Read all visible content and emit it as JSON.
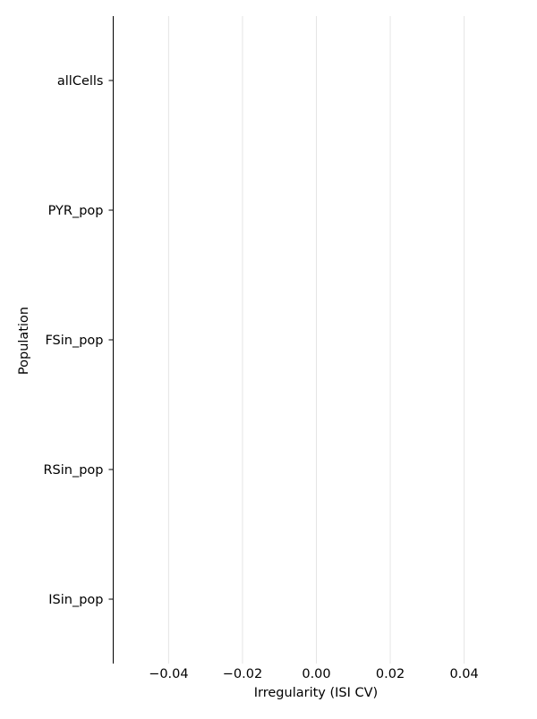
{
  "chart_data": {
    "type": "bar",
    "orientation": "horizontal",
    "title": "",
    "xlabel": "Irregularity (ISI CV)",
    "ylabel": "Population",
    "categories": [
      "allCells",
      "PYR_pop",
      "FSin_pop",
      "RSin_pop",
      "ISin_pop"
    ],
    "values": [
      null,
      null,
      null,
      null,
      null
    ],
    "xlim": [
      -0.055,
      0.055
    ],
    "xticks": [
      -0.04,
      -0.02,
      0.0,
      0.02,
      0.04
    ],
    "xtick_labels": [
      "−0.04",
      "−0.02",
      "0.00",
      "0.02",
      "0.04"
    ],
    "grid": "vertical",
    "legend": "none"
  },
  "colors": {
    "grid": "#e5e5e5",
    "axis": "#000000",
    "text": "#000000"
  }
}
